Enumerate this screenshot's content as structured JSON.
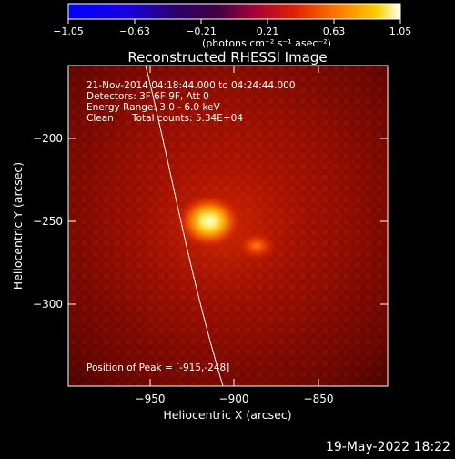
{
  "colorbar": {
    "ticks": [
      "−1.05",
      "−0.63",
      "−0.21",
      "0.21",
      "0.63",
      "1.05"
    ],
    "unit_label": "(photons cm⁻² s⁻¹ asec⁻²)"
  },
  "plot": {
    "title": "Reconstructed RHESSI Image",
    "xlabel": "Heliocentric X (arcsec)",
    "ylabel": "Heliocentric Y (arcsec)",
    "x_ticks": [
      "−950",
      "−900",
      "−850"
    ],
    "y_ticks": [
      "−200",
      "−250",
      "−300"
    ],
    "annotations": {
      "time_range": "21-Nov-2014 04:18:44.000 to 04:24:44.000",
      "detectors": "Detectors: 3F 6F 9F, Att 0",
      "energy": "Energy Range: 3.0 - 6.0 keV",
      "method": "Clean",
      "counts": "Total counts: 5.34E+04",
      "peak": "Position of Peak = [-915,-248]"
    }
  },
  "footer": {
    "timestamp": "19-May-2022 18:22"
  },
  "colors": {
    "background": "#000000",
    "limb_line": "#ffffff"
  }
}
